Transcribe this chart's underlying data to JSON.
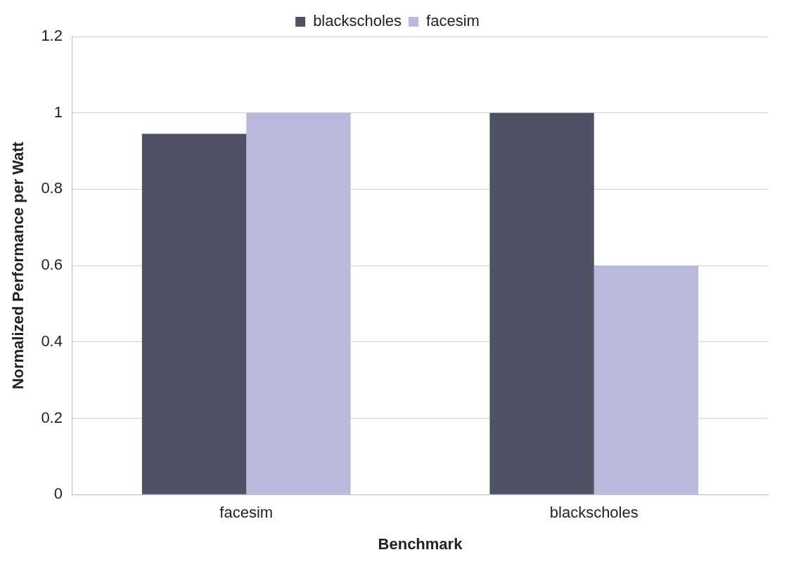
{
  "chart_data": {
    "type": "bar",
    "xlabel": "Benchmark",
    "ylabel": "Normalized Performance per Watt",
    "categories": [
      "facesim",
      "blackscholes"
    ],
    "series": [
      {
        "name": "blackscholes",
        "color": "#4f5165",
        "values": [
          0.945,
          1.0
        ]
      },
      {
        "name": "facesim",
        "color": "#b9b9de",
        "values": [
          1.0,
          0.6
        ]
      }
    ],
    "ylim": [
      0,
      1.2
    ],
    "yticks": [
      0,
      0.2,
      0.4,
      0.6,
      0.8,
      1,
      1.2
    ],
    "grid": "y",
    "legend": "top"
  }
}
